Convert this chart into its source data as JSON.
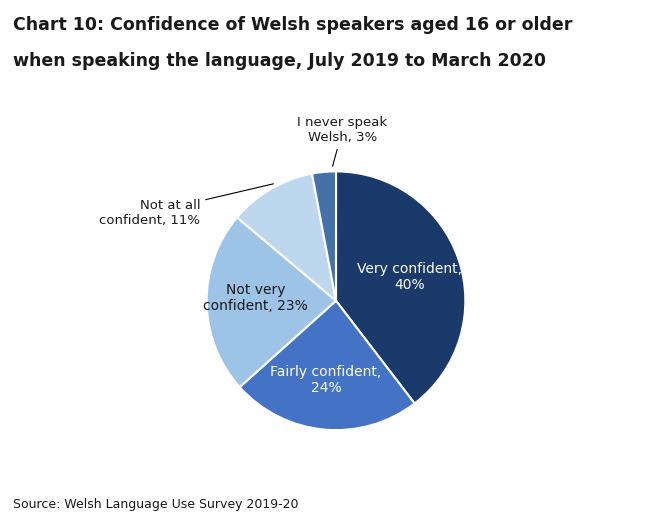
{
  "title_line1": "Chart 10: Confidence of Welsh speakers aged 16 or older",
  "title_line2": "when speaking the language, July 2019 to March 2020",
  "source": "Source: Welsh Language Use Survey 2019-20",
  "slices": [
    {
      "label": "Very confident,\n40%",
      "value": 40,
      "color": "#1a3a6b",
      "text_color": "white"
    },
    {
      "label": "Fairly confident,\n24%",
      "value": 24,
      "color": "#4472c4",
      "text_color": "white"
    },
    {
      "label": "Not very\nconfident, 23%",
      "value": 23,
      "color": "#9dc3e6",
      "text_color": "#1a1a1a"
    },
    {
      "label": "Not at all\nconfident, 11%",
      "value": 11,
      "color": "#bdd7ee",
      "text_color": "#1a1a1a"
    },
    {
      "label": "I never speak\nWelsh, 3%",
      "value": 3,
      "color": "#4472a8",
      "text_color": "#1a1a1a"
    }
  ],
  "start_angle": 90,
  "background_color": "#ffffff",
  "figsize": [
    6.72,
    5.21
  ],
  "dpi": 100
}
